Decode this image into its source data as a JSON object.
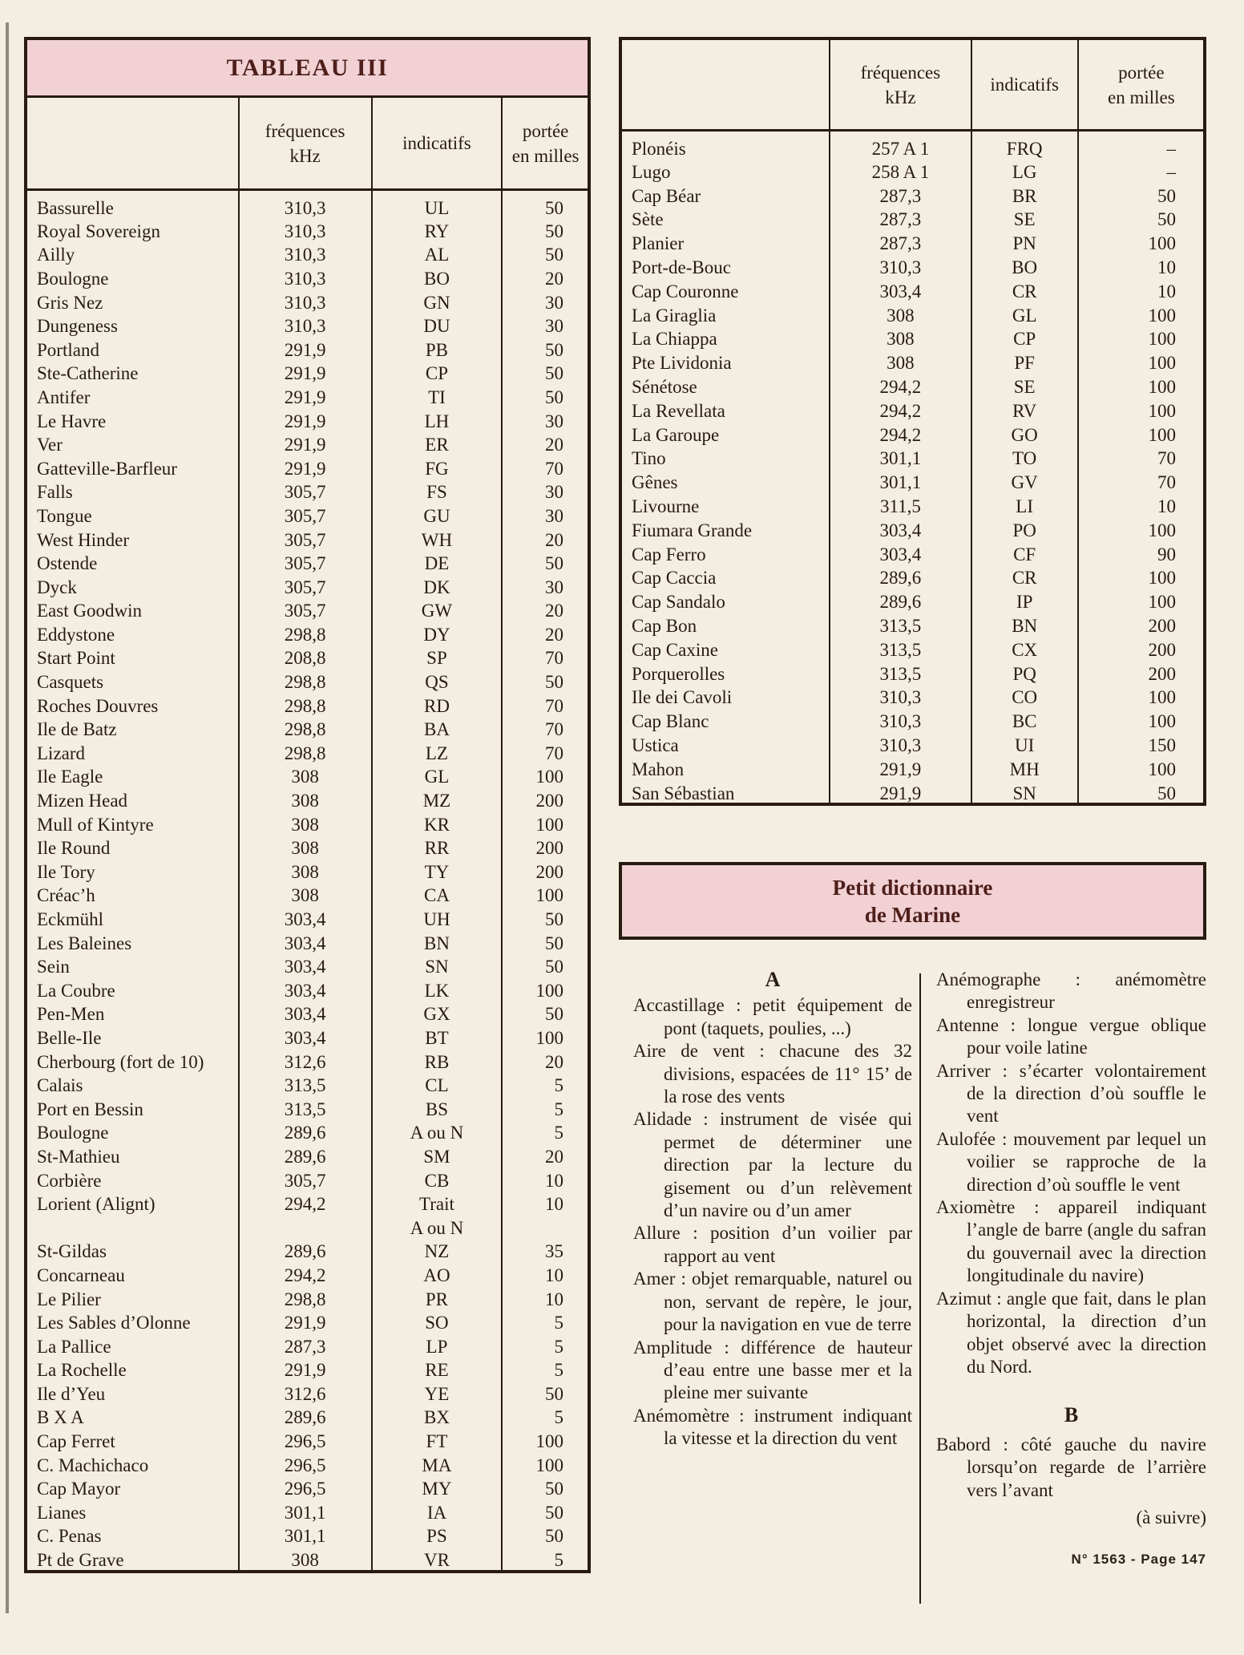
{
  "page": {
    "background": "#f3eee0",
    "ink": "#281b10",
    "accent_pink": "#f2d1d5",
    "title_color": "#4e1f1a",
    "to_be_continued": "(à suivre)",
    "page_ref": "N° 1563 - Page 147"
  },
  "left_table": {
    "title": "TABLEAU III",
    "headers": {
      "name": "",
      "freq_line1": "fréquences",
      "freq_line2": "kHz",
      "callsign": "indicatifs",
      "range_line1": "portée",
      "range_line2": "en milles"
    },
    "rows": [
      [
        "Bassurelle",
        "310,3",
        "UL",
        "50"
      ],
      [
        "Royal Sovereign",
        "310,3",
        "RY",
        "50"
      ],
      [
        "Ailly",
        "310,3",
        "AL",
        "50"
      ],
      [
        "Boulogne",
        "310,3",
        "BO",
        "20"
      ],
      [
        "Gris Nez",
        "310,3",
        "GN",
        "30"
      ],
      [
        "Dungeness",
        "310,3",
        "DU",
        "30"
      ],
      [
        "Portland",
        "291,9",
        "PB",
        "50"
      ],
      [
        "Ste-Catherine",
        "291,9",
        "CP",
        "50"
      ],
      [
        "Antifer",
        "291,9",
        "TI",
        "50"
      ],
      [
        "Le Havre",
        "291,9",
        "LH",
        "30"
      ],
      [
        "Ver",
        "291,9",
        "ER",
        "20"
      ],
      [
        "Gatteville-Barfleur",
        "291,9",
        "FG",
        "70"
      ],
      [
        "Falls",
        "305,7",
        "FS",
        "30"
      ],
      [
        "Tongue",
        "305,7",
        "GU",
        "30"
      ],
      [
        "West Hinder",
        "305,7",
        "WH",
        "20"
      ],
      [
        "Ostende",
        "305,7",
        "DE",
        "50"
      ],
      [
        "Dyck",
        "305,7",
        "DK",
        "30"
      ],
      [
        "East Goodwin",
        "305,7",
        "GW",
        "20"
      ],
      [
        "Eddystone",
        "298,8",
        "DY",
        "20"
      ],
      [
        "Start Point",
        "208,8",
        "SP",
        "70"
      ],
      [
        "Casquets",
        "298,8",
        "QS",
        "50"
      ],
      [
        "Roches Douvres",
        "298,8",
        "RD",
        "70"
      ],
      [
        "Ile de Batz",
        "298,8",
        "BA",
        "70"
      ],
      [
        "Lizard",
        "298,8",
        "LZ",
        "70"
      ],
      [
        "Ile Eagle",
        "308",
        "GL",
        "100"
      ],
      [
        "Mizen Head",
        "308",
        "MZ",
        "200"
      ],
      [
        "Mull of Kintyre",
        "308",
        "KR",
        "100"
      ],
      [
        "Ile Round",
        "308",
        "RR",
        "200"
      ],
      [
        "Ile Tory",
        "308",
        "TY",
        "200"
      ],
      [
        "Créac’h",
        "308",
        "CA",
        "100"
      ],
      [
        "Eckmühl",
        "303,4",
        "UH",
        "50"
      ],
      [
        "Les Baleines",
        "303,4",
        "BN",
        "50"
      ],
      [
        "Sein",
        "303,4",
        "SN",
        "50"
      ],
      [
        "La Coubre",
        "303,4",
        "LK",
        "100"
      ],
      [
        "Pen-Men",
        "303,4",
        "GX",
        "50"
      ],
      [
        "Belle-Ile",
        "303,4",
        "BT",
        "100"
      ],
      [
        "Cherbourg (fort de 10)",
        "312,6",
        "RB",
        "20"
      ],
      [
        "Calais",
        "313,5",
        "CL",
        "5"
      ],
      [
        "Port en Bessin",
        "313,5",
        "BS",
        "5"
      ],
      [
        "Boulogne",
        "289,6",
        "A ou N",
        "5"
      ],
      [
        "St-Mathieu",
        "289,6",
        "SM",
        "20"
      ],
      [
        "Corbière",
        "305,7",
        "CB",
        "10"
      ],
      [
        "Lorient (Alignt)",
        "294,2",
        "Trait",
        "10"
      ],
      [
        "",
        "",
        "A ou N",
        ""
      ],
      [
        "St-Gildas",
        "289,6",
        "NZ",
        "35"
      ],
      [
        "Concarneau",
        "294,2",
        "AO",
        "10"
      ],
      [
        "Le Pilier",
        "298,8",
        "PR",
        "10"
      ],
      [
        "Les Sables d’Olonne",
        "291,9",
        "SO",
        "5"
      ],
      [
        "La Pallice",
        "287,3",
        "LP",
        "5"
      ],
      [
        "La Rochelle",
        "291,9",
        "RE",
        "5"
      ],
      [
        "Ile d’Yeu",
        "312,6",
        "YE",
        "50"
      ],
      [
        "B X A",
        "289,6",
        "BX",
        "5"
      ],
      [
        "Cap Ferret",
        "296,5",
        "FT",
        "100"
      ],
      [
        "C. Machichaco",
        "296,5",
        "MA",
        "100"
      ],
      [
        "Cap Mayor",
        "296,5",
        "MY",
        "50"
      ],
      [
        "Lianes",
        "301,1",
        "IA",
        "50"
      ],
      [
        "C. Penas",
        "301,1",
        "PS",
        "50"
      ],
      [
        "Pt de Grave",
        "308",
        "VR",
        "5"
      ]
    ]
  },
  "right_table": {
    "headers": {
      "name": "",
      "freq_line1": "fréquences",
      "freq_line2": "kHz",
      "callsign": "indicatifs",
      "range_line1": "portée",
      "range_line2": "en milles"
    },
    "rows": [
      [
        "Plonéis",
        "257 A 1",
        "FRQ",
        "–"
      ],
      [
        "Lugo",
        "258 A 1",
        "LG",
        "–"
      ],
      [
        "Cap Béar",
        "287,3",
        "BR",
        "50"
      ],
      [
        "Sète",
        "287,3",
        "SE",
        "50"
      ],
      [
        "Planier",
        "287,3",
        "PN",
        "100"
      ],
      [
        "Port-de-Bouc",
        "310,3",
        "BO",
        "10"
      ],
      [
        "Cap Couronne",
        "303,4",
        "CR",
        "10"
      ],
      [
        "La Giraglia",
        "308",
        "GL",
        "100"
      ],
      [
        "La Chiappa",
        "308",
        "CP",
        "100"
      ],
      [
        "Pte Lividonia",
        "308",
        "PF",
        "100"
      ],
      [
        "Sénétose",
        "294,2",
        "SE",
        "100"
      ],
      [
        "La Revellata",
        "294,2",
        "RV",
        "100"
      ],
      [
        "La Garoupe",
        "294,2",
        "GO",
        "100"
      ],
      [
        "Tino",
        "301,1",
        "TO",
        "70"
      ],
      [
        "Gênes",
        "301,1",
        "GV",
        "70"
      ],
      [
        "Livourne",
        "311,5",
        "LI",
        "10"
      ],
      [
        "Fiumara Grande",
        "303,4",
        "PO",
        "100"
      ],
      [
        "Cap Ferro",
        "303,4",
        "CF",
        "90"
      ],
      [
        "Cap Caccia",
        "289,6",
        "CR",
        "100"
      ],
      [
        "Cap Sandalo",
        "289,6",
        "IP",
        "100"
      ],
      [
        "Cap Bon",
        "313,5",
        "BN",
        "200"
      ],
      [
        "Cap Caxine",
        "313,5",
        "CX",
        "200"
      ],
      [
        "Porquerolles",
        "313,5",
        "PQ",
        "200"
      ],
      [
        "Ile dei Cavoli",
        "310,3",
        "CO",
        "100"
      ],
      [
        "Cap Blanc",
        "310,3",
        "BC",
        "100"
      ],
      [
        "Ustica",
        "310,3",
        "UI",
        "150"
      ],
      [
        "Mahon",
        "291,9",
        "MH",
        "100"
      ],
      [
        "San Sébastian",
        "291,9",
        "SN",
        "50"
      ]
    ]
  },
  "dictionary": {
    "title_line1": "Petit dictionnaire",
    "title_line2": "de Marine",
    "left_letter": "A",
    "right_letter": "B",
    "left_entries": [
      {
        "term": "Accastillage",
        "def": "petit équipement de pont (taquets, poulies, ...)"
      },
      {
        "term": "Aire de vent",
        "def": "chacune des 32 divisions, espacées de 11° 15’ de la rose des vents"
      },
      {
        "term": "Alidade",
        "def": "instrument de visée qui permet de déterminer une direction par la lecture du gisement ou d’un relèvement d’un navire ou d’un amer"
      },
      {
        "term": "Allure",
        "def": "position d’un voilier par rapport au vent"
      },
      {
        "term": "Amer",
        "def": "objet remarquable, naturel ou non, servant de repère, le jour, pour la navigation en vue de terre"
      },
      {
        "term": "Amplitude",
        "def": "différence de hauteur d’eau entre une basse mer et la pleine mer suivante"
      },
      {
        "term": "Anémomètre",
        "def": "instrument indiquant la vitesse et la direction du vent"
      }
    ],
    "right_entries": [
      {
        "term": "Anémographe",
        "def": "anémomètre enregistreur"
      },
      {
        "term": "Antenne",
        "def": "longue vergue oblique pour voile latine"
      },
      {
        "term": "Arriver",
        "def": "s’écarter volontairement de la direction d’où souffle le vent"
      },
      {
        "term": "Aulofée",
        "def": "mouvement par lequel un voilier se rapproche de la direction d’où souffle le vent"
      },
      {
        "term": "Axiomètre",
        "def": "appareil indiquant l’angle de barre (angle du safran du gouvernail avec la direction longitudinale du navire)"
      },
      {
        "term": "Azimut",
        "def": "angle que fait, dans le plan horizontal, la direction d’un objet observé avec la direction du Nord."
      }
    ],
    "b_entries": [
      {
        "term": "Babord",
        "def": "côté gauche du navire lorsqu’on regarde de l’arrière vers l’avant"
      }
    ]
  }
}
